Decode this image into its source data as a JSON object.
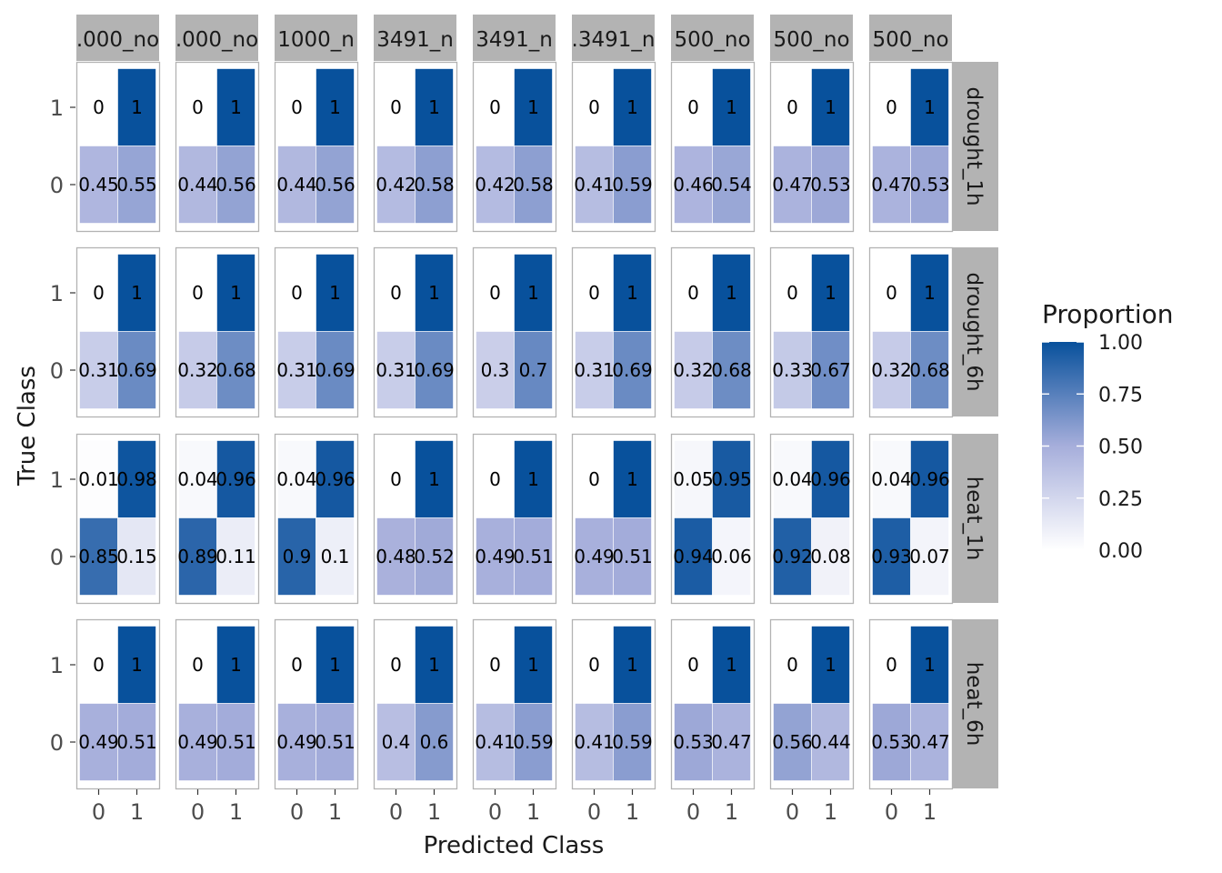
{
  "chart_data": {
    "type": "heatmap",
    "xlabel": "Predicted Class",
    "ylabel": "True Class",
    "x_categories": [
      "0",
      "1"
    ],
    "y_categories": [
      "0",
      "1"
    ],
    "column_strips": [
      ".000_no",
      ".000_no",
      "1000_n",
      "3491_n",
      "3491_n",
      ".3491_n",
      "500_no",
      "500_no",
      "500_no"
    ],
    "row_strips": [
      "drought_1h",
      "drought_6h",
      "heat_1h",
      "heat_6h"
    ],
    "legend": {
      "title": "Proportion",
      "breaks": [
        "1.00",
        "0.75",
        "0.50",
        "0.25",
        "0.00"
      ],
      "low_color": "#ffffff",
      "high_color": "#08519c",
      "range": [
        0,
        1
      ],
      "placement": "right"
    },
    "panels": [
      [
        {
          "t1p0": "0",
          "t1p1": "1",
          "t0p0": "0.45",
          "t0p1": "0.55",
          "v": [
            0,
            1,
            0.45,
            0.55
          ]
        },
        {
          "t1p0": "0",
          "t1p1": "1",
          "t0p0": "0.44",
          "t0p1": "0.56",
          "v": [
            0,
            1,
            0.44,
            0.56
          ]
        },
        {
          "t1p0": "0",
          "t1p1": "1",
          "t0p0": "0.44",
          "t0p1": "0.56",
          "v": [
            0,
            1,
            0.44,
            0.56
          ]
        },
        {
          "t1p0": "0",
          "t1p1": "1",
          "t0p0": "0.42",
          "t0p1": "0.58",
          "v": [
            0,
            1,
            0.42,
            0.58
          ]
        },
        {
          "t1p0": "0",
          "t1p1": "1",
          "t0p0": "0.42",
          "t0p1": "0.58",
          "v": [
            0,
            1,
            0.42,
            0.58
          ]
        },
        {
          "t1p0": "0",
          "t1p1": "1",
          "t0p0": "0.41",
          "t0p1": "0.59",
          "v": [
            0,
            1,
            0.41,
            0.59
          ]
        },
        {
          "t1p0": "0",
          "t1p1": "1",
          "t0p0": "0.46",
          "t0p1": "0.54",
          "v": [
            0,
            1,
            0.46,
            0.54
          ]
        },
        {
          "t1p0": "0",
          "t1p1": "1",
          "t0p0": "0.47",
          "t0p1": "0.53",
          "v": [
            0,
            1,
            0.47,
            0.53
          ]
        },
        {
          "t1p0": "0",
          "t1p1": "1",
          "t0p0": "0.47",
          "t0p1": "0.53",
          "v": [
            0,
            1,
            0.47,
            0.53
          ]
        }
      ],
      [
        {
          "t1p0": "0",
          "t1p1": "1",
          "t0p0": "0.31",
          "t0p1": "0.69",
          "v": [
            0,
            1,
            0.31,
            0.69
          ]
        },
        {
          "t1p0": "0",
          "t1p1": "1",
          "t0p0": "0.32",
          "t0p1": "0.68",
          "v": [
            0,
            1,
            0.32,
            0.68
          ]
        },
        {
          "t1p0": "0",
          "t1p1": "1",
          "t0p0": "0.31",
          "t0p1": "0.69",
          "v": [
            0,
            1,
            0.31,
            0.69
          ]
        },
        {
          "t1p0": "0",
          "t1p1": "1",
          "t0p0": "0.31",
          "t0p1": "0.69",
          "v": [
            0,
            1,
            0.31,
            0.69
          ]
        },
        {
          "t1p0": "0",
          "t1p1": "1",
          "t0p0": "0.3",
          "t0p1": "0.7",
          "v": [
            0,
            1,
            0.3,
            0.7
          ]
        },
        {
          "t1p0": "0",
          "t1p1": "1",
          "t0p0": "0.31",
          "t0p1": "0.69",
          "v": [
            0,
            1,
            0.31,
            0.69
          ]
        },
        {
          "t1p0": "0",
          "t1p1": "1",
          "t0p0": "0.32",
          "t0p1": "0.68",
          "v": [
            0,
            1,
            0.32,
            0.68
          ]
        },
        {
          "t1p0": "0",
          "t1p1": "1",
          "t0p0": "0.33",
          "t0p1": "0.67",
          "v": [
            0,
            1,
            0.33,
            0.67
          ]
        },
        {
          "t1p0": "0",
          "t1p1": "1",
          "t0p0": "0.32",
          "t0p1": "0.68",
          "v": [
            0,
            1,
            0.32,
            0.68
          ]
        }
      ],
      [
        {
          "t1p0": "0.01",
          "t1p1": "0.98",
          "t0p0": "0.85",
          "t0p1": "0.15",
          "v": [
            0.01,
            0.98,
            0.85,
            0.15
          ]
        },
        {
          "t1p0": "0.04",
          "t1p1": "0.96",
          "t0p0": "0.89",
          "t0p1": "0.11",
          "v": [
            0.04,
            0.96,
            0.89,
            0.11
          ]
        },
        {
          "t1p0": "0.04",
          "t1p1": "0.96",
          "t0p0": "0.9",
          "t0p1": "0.1",
          "v": [
            0.04,
            0.96,
            0.9,
            0.1
          ]
        },
        {
          "t1p0": "0",
          "t1p1": "1",
          "t0p0": "0.48",
          "t0p1": "0.52",
          "v": [
            0,
            1,
            0.48,
            0.52
          ]
        },
        {
          "t1p0": "0",
          "t1p1": "1",
          "t0p0": "0.49",
          "t0p1": "0.51",
          "v": [
            0,
            1,
            0.49,
            0.51
          ]
        },
        {
          "t1p0": "0",
          "t1p1": "1",
          "t0p0": "0.49",
          "t0p1": "0.51",
          "v": [
            0,
            1,
            0.49,
            0.51
          ]
        },
        {
          "t1p0": "0.05",
          "t1p1": "0.95",
          "t0p0": "0.94",
          "t0p1": "0.06",
          "v": [
            0.05,
            0.95,
            0.94,
            0.06
          ]
        },
        {
          "t1p0": "0.04",
          "t1p1": "0.96",
          "t0p0": "0.92",
          "t0p1": "0.08",
          "v": [
            0.04,
            0.96,
            0.92,
            0.08
          ]
        },
        {
          "t1p0": "0.04",
          "t1p1": "0.96",
          "t0p0": "0.93",
          "t0p1": "0.07",
          "v": [
            0.04,
            0.96,
            0.93,
            0.07
          ]
        }
      ],
      [
        {
          "t1p0": "0",
          "t1p1": "1",
          "t0p0": "0.49",
          "t0p1": "0.51",
          "v": [
            0,
            1,
            0.49,
            0.51
          ]
        },
        {
          "t1p0": "0",
          "t1p1": "1",
          "t0p0": "0.49",
          "t0p1": "0.51",
          "v": [
            0,
            1,
            0.49,
            0.51
          ]
        },
        {
          "t1p0": "0",
          "t1p1": "1",
          "t0p0": "0.49",
          "t0p1": "0.51",
          "v": [
            0,
            1,
            0.49,
            0.51
          ]
        },
        {
          "t1p0": "0",
          "t1p1": "1",
          "t0p0": "0.4",
          "t0p1": "0.6",
          "v": [
            0,
            1,
            0.4,
            0.6
          ]
        },
        {
          "t1p0": "0",
          "t1p1": "1",
          "t0p0": "0.41",
          "t0p1": "0.59",
          "v": [
            0,
            1,
            0.41,
            0.59
          ]
        },
        {
          "t1p0": "0",
          "t1p1": "1",
          "t0p0": "0.41",
          "t0p1": "0.59",
          "v": [
            0,
            1,
            0.41,
            0.59
          ]
        },
        {
          "t1p0": "0",
          "t1p1": "1",
          "t0p0": "0.53",
          "t0p1": "0.47",
          "v": [
            0,
            1,
            0.53,
            0.47
          ]
        },
        {
          "t1p0": "0",
          "t1p1": "1",
          "t0p0": "0.56",
          "t0p1": "0.44",
          "v": [
            0,
            1,
            0.56,
            0.44
          ]
        },
        {
          "t1p0": "0",
          "t1p1": "1",
          "t0p0": "0.53",
          "t0p1": "0.47",
          "v": [
            0,
            1,
            0.53,
            0.47
          ]
        }
      ]
    ]
  }
}
